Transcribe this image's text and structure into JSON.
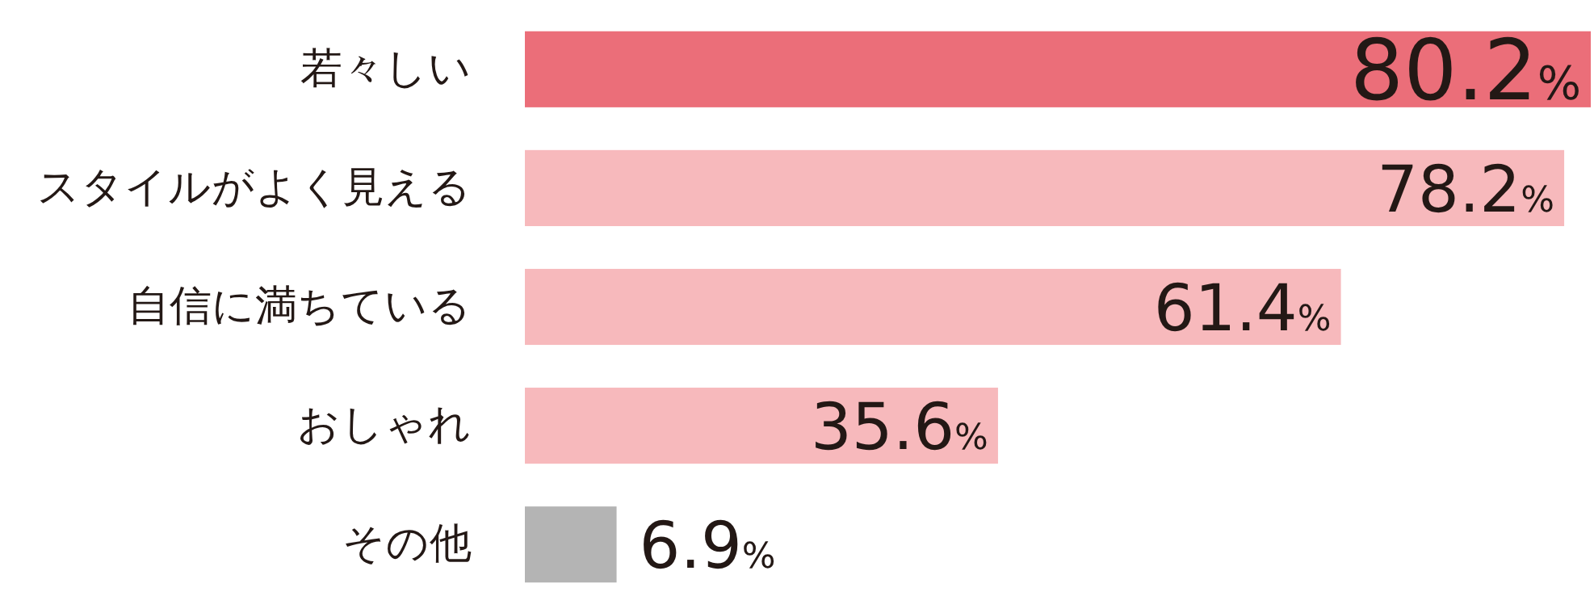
{
  "chart_data": {
    "type": "bar",
    "orientation": "horizontal",
    "categories": [
      "若々しい",
      "スタイルがよく見える",
      "自信に満ちている",
      "おしゃれ",
      "その他"
    ],
    "values": [
      80.2,
      78.2,
      61.4,
      35.6,
      6.9
    ],
    "colors": [
      "#eb6e79",
      "#f7b9bc",
      "#f7b9bc",
      "#f7b9bc",
      "#b4b4b4"
    ],
    "value_labels": [
      "80.2%",
      "78.2%",
      "61.4%",
      "35.6%",
      "6.9%"
    ]
  }
}
